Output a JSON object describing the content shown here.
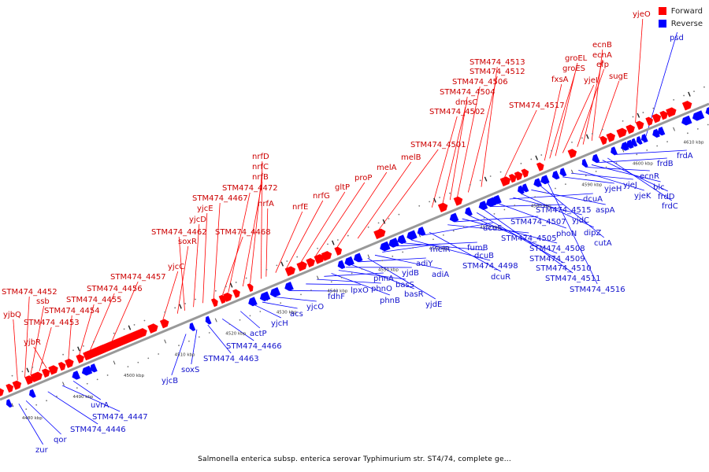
{
  "colors": {
    "forward": "#ff0000",
    "reverse": "#0000ff",
    "label_forward": "#cc0000",
    "label_reverse": "#1111cc",
    "backbone": "#999999"
  },
  "legend": {
    "forward": "Forward",
    "reverse": "Reverse"
  },
  "caption": "Salmonella enterica subsp. enterica serovar Typhimurium str. ST4/74, complete ge...",
  "ticks": [
    "4480 kbp",
    "4490 kbp",
    "4500 kbp",
    "4510 kbp",
    "4520 kbp",
    "4530 kbp",
    "4540 kbp",
    "4550 kbp",
    "4560 kbp",
    "4570 kbp",
    "4580 kbp",
    "4590 kbp",
    "4600 kbp",
    "4610 kbp"
  ],
  "forward_labels": [
    "STM474_4452",
    "ssb",
    "yjbQ",
    "STM474_4453",
    "yjbR",
    "STM474_4454",
    "STM474_4455",
    "STM474_4456",
    "STM474_4457",
    "yjcC",
    "soxR",
    "STM474_4462",
    "yjcD",
    "yjcE",
    "STM474_4467",
    "STM474_4468",
    "STM474_4472",
    "nrfB",
    "nrfC",
    "nrfD",
    "nrfA",
    "nrfE",
    "nrfG",
    "gltP",
    "proP",
    "melA",
    "melB",
    "STM474_4501",
    "STM474_4502",
    "dmsC",
    "STM474_4504",
    "STM474_4506",
    "STM474_4512",
    "STM474_4513",
    "STM474_4517",
    "fxsA",
    "groES",
    "groEL",
    "yjeI",
    "efp",
    "ecnA",
    "ecnB",
    "sugE",
    "yjeO"
  ],
  "reverse_labels": [
    "zur",
    "qor",
    "STM474_4446",
    "STM474_4447",
    "uvrA",
    "yjcB",
    "soxS",
    "STM474_4463",
    "STM474_4466",
    "actP",
    "yjcH",
    "acs",
    "yjcO",
    "fdhF",
    "lpxO",
    "phnO",
    "phnA",
    "phnB",
    "basS",
    "yjdB",
    "basR",
    "adiY",
    "yjdE",
    "adiA",
    "melR",
    "fumB",
    "dcuB",
    "STM474_4498",
    "dcuS",
    "dcuR",
    "STM474_4505",
    "STM474_4507",
    "STM474_4508",
    "STM474_4509",
    "STM474_4510",
    "STM474_4511",
    "STM474_4515",
    "phoN",
    "dcuA",
    "yjdC",
    "dipZ",
    "aspA",
    "cutA",
    "STM474_4516",
    "yjeH",
    "yjeJ",
    "yjeK",
    "ecnR",
    "blc",
    "frdB",
    "frdD",
    "frdC",
    "frdA",
    "psd"
  ]
}
